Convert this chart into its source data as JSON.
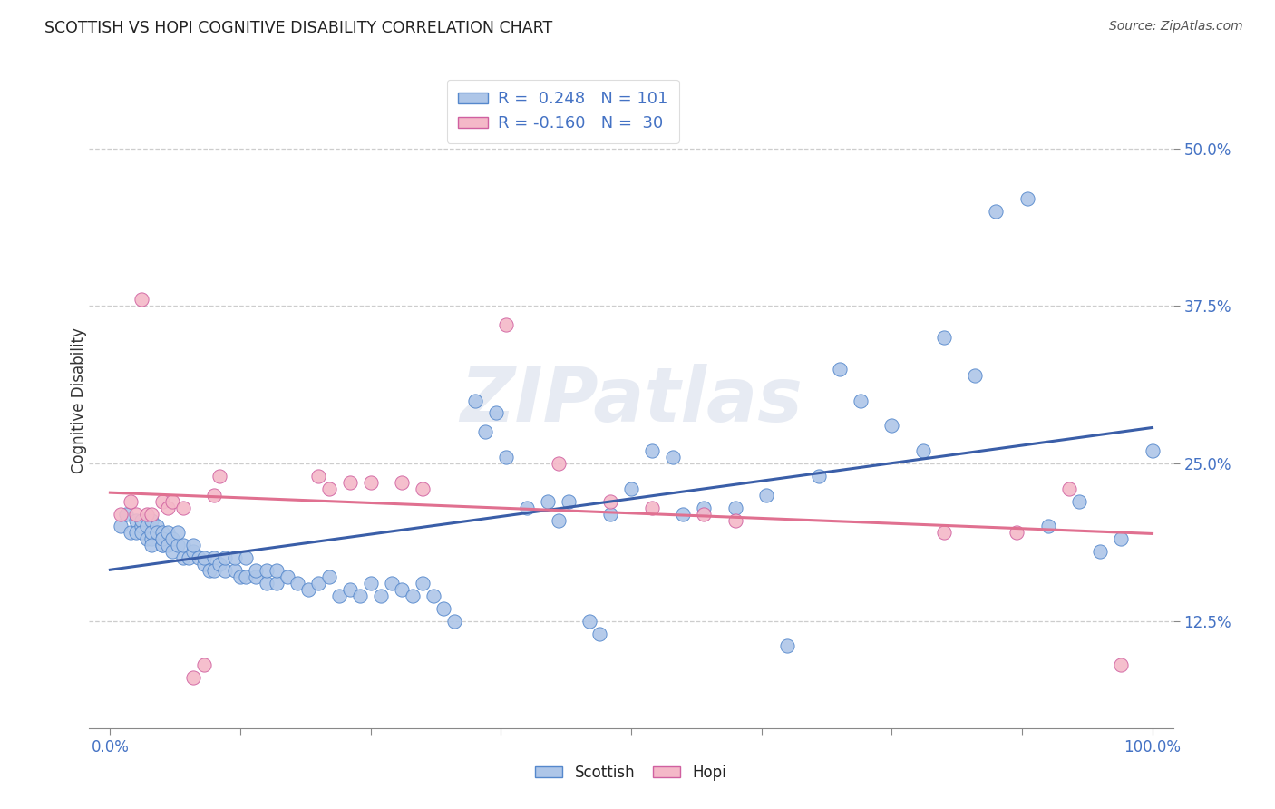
{
  "title": "SCOTTISH VS HOPI COGNITIVE DISABILITY CORRELATION CHART",
  "source": "Source: ZipAtlas.com",
  "ylabel": "Cognitive Disability",
  "ytick_values": [
    0.125,
    0.25,
    0.375,
    0.5
  ],
  "ytick_labels": [
    "12.5%",
    "25.0%",
    "37.5%",
    "50.0%"
  ],
  "xlim": [
    -0.02,
    1.02
  ],
  "ylim": [
    0.04,
    0.56
  ],
  "scottish_color": "#aec6e8",
  "hopi_color": "#f4b8c8",
  "line_color_scottish": "#3a5ea8",
  "line_color_hopi": "#e07090",
  "scottish_edge": "#5588cc",
  "hopi_edge": "#d060a0",
  "watermark": "ZIPatlas",
  "scottish_x": [
    0.01,
    0.015,
    0.02,
    0.025,
    0.025,
    0.03,
    0.03,
    0.03,
    0.035,
    0.035,
    0.04,
    0.04,
    0.04,
    0.04,
    0.045,
    0.045,
    0.05,
    0.05,
    0.05,
    0.05,
    0.055,
    0.055,
    0.06,
    0.06,
    0.065,
    0.065,
    0.07,
    0.07,
    0.075,
    0.08,
    0.08,
    0.085,
    0.09,
    0.09,
    0.095,
    0.1,
    0.1,
    0.105,
    0.11,
    0.11,
    0.12,
    0.12,
    0.125,
    0.13,
    0.13,
    0.14,
    0.14,
    0.15,
    0.15,
    0.16,
    0.16,
    0.17,
    0.18,
    0.19,
    0.2,
    0.21,
    0.22,
    0.23,
    0.24,
    0.25,
    0.26,
    0.27,
    0.28,
    0.29,
    0.3,
    0.31,
    0.32,
    0.33,
    0.35,
    0.36,
    0.37,
    0.38,
    0.4,
    0.42,
    0.43,
    0.44,
    0.46,
    0.47,
    0.48,
    0.5,
    0.52,
    0.54,
    0.55,
    0.57,
    0.6,
    0.63,
    0.65,
    0.68,
    0.7,
    0.72,
    0.75,
    0.78,
    0.8,
    0.83,
    0.85,
    0.88,
    0.9,
    0.93,
    0.95,
    0.97,
    1.0
  ],
  "scottish_y": [
    0.2,
    0.21,
    0.195,
    0.205,
    0.195,
    0.2,
    0.205,
    0.195,
    0.2,
    0.19,
    0.19,
    0.205,
    0.195,
    0.185,
    0.2,
    0.195,
    0.185,
    0.195,
    0.185,
    0.19,
    0.185,
    0.195,
    0.18,
    0.19,
    0.185,
    0.195,
    0.175,
    0.185,
    0.175,
    0.18,
    0.185,
    0.175,
    0.17,
    0.175,
    0.165,
    0.175,
    0.165,
    0.17,
    0.165,
    0.175,
    0.165,
    0.175,
    0.16,
    0.16,
    0.175,
    0.16,
    0.165,
    0.155,
    0.165,
    0.155,
    0.165,
    0.16,
    0.155,
    0.15,
    0.155,
    0.16,
    0.145,
    0.15,
    0.145,
    0.155,
    0.145,
    0.155,
    0.15,
    0.145,
    0.155,
    0.145,
    0.135,
    0.125,
    0.3,
    0.275,
    0.29,
    0.255,
    0.215,
    0.22,
    0.205,
    0.22,
    0.125,
    0.115,
    0.21,
    0.23,
    0.26,
    0.255,
    0.21,
    0.215,
    0.215,
    0.225,
    0.105,
    0.24,
    0.325,
    0.3,
    0.28,
    0.26,
    0.35,
    0.32,
    0.45,
    0.46,
    0.2,
    0.22,
    0.18,
    0.19,
    0.26
  ],
  "hopi_x": [
    0.01,
    0.02,
    0.025,
    0.03,
    0.035,
    0.04,
    0.05,
    0.055,
    0.06,
    0.07,
    0.08,
    0.09,
    0.1,
    0.105,
    0.2,
    0.21,
    0.23,
    0.25,
    0.28,
    0.3,
    0.38,
    0.43,
    0.48,
    0.52,
    0.57,
    0.6,
    0.8,
    0.87,
    0.92,
    0.97
  ],
  "hopi_y": [
    0.21,
    0.22,
    0.21,
    0.38,
    0.21,
    0.21,
    0.22,
    0.215,
    0.22,
    0.215,
    0.08,
    0.09,
    0.225,
    0.24,
    0.24,
    0.23,
    0.235,
    0.235,
    0.235,
    0.23,
    0.36,
    0.25,
    0.22,
    0.215,
    0.21,
    0.205,
    0.195,
    0.195,
    0.23,
    0.09
  ]
}
